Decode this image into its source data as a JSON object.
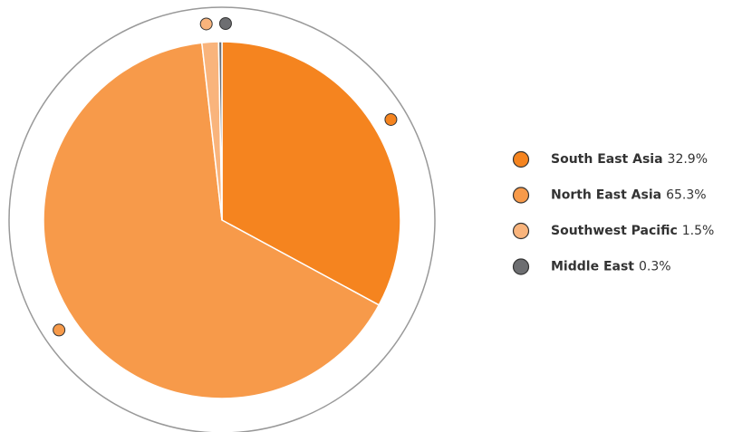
{
  "chart_data": {
    "type": "pie",
    "categories": [
      "South East Asia",
      "North East Asia",
      "Southwest Pacific",
      "Middle East"
    ],
    "values": [
      32.9,
      65.3,
      1.5,
      0.3
    ],
    "value_labels": [
      "32.9%",
      "65.3%",
      "1.5%",
      "0.3%"
    ],
    "colors": [
      "#f5841f",
      "#f79a4a",
      "#f9b47c",
      "#6d6e71"
    ]
  }
}
